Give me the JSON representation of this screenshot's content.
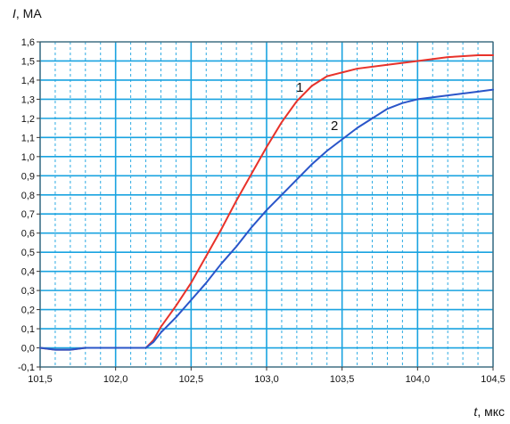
{
  "chart_data": {
    "type": "line",
    "ylabel_symbol": "I",
    "ylabel_unit": ", МА",
    "xlabel_symbol": "t",
    "xlabel_unit": ", мкс",
    "xlim": [
      101.5,
      104.5
    ],
    "ylim": [
      -0.1,
      1.6
    ],
    "x_ticks": [
      101.5,
      102.0,
      102.5,
      103.0,
      103.5,
      104.0,
      104.5
    ],
    "x_tick_labels": [
      "101,5",
      "102,0",
      "102,5",
      "103,0",
      "103,5",
      "104,0",
      "104,5"
    ],
    "y_ticks": [
      -0.1,
      0.0,
      0.1,
      0.2,
      0.3,
      0.4,
      0.5,
      0.6,
      0.7,
      0.8,
      0.9,
      1.0,
      1.1,
      1.2,
      1.3,
      1.4,
      1.5,
      1.6
    ],
    "y_tick_labels": [
      "-0,1",
      "0,0",
      "0,1",
      "0,2",
      "0,3",
      "0,4",
      "0,5",
      "0,6",
      "0,7",
      "0,8",
      "0,9",
      "1,0",
      "1,1",
      "1,2",
      "1,3",
      "1,4",
      "1,5",
      "1,6"
    ],
    "grid": true,
    "grid_color": "#19a3e0",
    "series": [
      {
        "name": "1",
        "color": "#e8322a",
        "x": [
          101.5,
          101.6,
          101.7,
          101.8,
          101.9,
          102.0,
          102.1,
          102.2,
          102.25,
          102.3,
          102.4,
          102.5,
          102.6,
          102.7,
          102.8,
          102.9,
          103.0,
          103.1,
          103.2,
          103.3,
          103.4,
          103.5,
          103.6,
          103.8,
          104.0,
          104.2,
          104.4,
          104.5
        ],
        "y": [
          0.0,
          -0.01,
          -0.01,
          0.0,
          0.0,
          0.0,
          0.0,
          0.0,
          0.04,
          0.11,
          0.22,
          0.34,
          0.48,
          0.62,
          0.77,
          0.91,
          1.05,
          1.18,
          1.29,
          1.37,
          1.42,
          1.44,
          1.46,
          1.48,
          1.5,
          1.52,
          1.53,
          1.53
        ]
      },
      {
        "name": "2",
        "color": "#2a55c9",
        "x": [
          101.5,
          101.6,
          101.7,
          101.8,
          101.9,
          102.0,
          102.1,
          102.2,
          102.25,
          102.3,
          102.4,
          102.5,
          102.6,
          102.7,
          102.8,
          102.9,
          103.0,
          103.1,
          103.2,
          103.3,
          103.4,
          103.5,
          103.6,
          103.7,
          103.8,
          103.9,
          104.0,
          104.2,
          104.4,
          104.5
        ],
        "y": [
          0.0,
          -0.01,
          -0.01,
          0.0,
          0.0,
          0.0,
          0.0,
          0.0,
          0.03,
          0.08,
          0.16,
          0.25,
          0.34,
          0.44,
          0.53,
          0.63,
          0.72,
          0.8,
          0.88,
          0.96,
          1.03,
          1.09,
          1.15,
          1.2,
          1.25,
          1.28,
          1.3,
          1.32,
          1.34,
          1.35
        ]
      }
    ],
    "curve_labels": [
      {
        "text": "1",
        "x": 103.22,
        "y": 1.34
      },
      {
        "text": "2",
        "x": 103.45,
        "y": 1.14
      }
    ]
  }
}
